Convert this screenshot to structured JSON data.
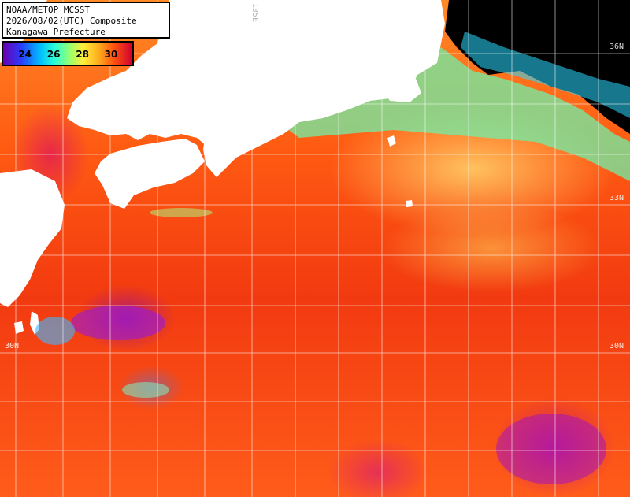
{
  "header": {
    "line1": "NOAA/METOP MCSST",
    "line2": "2026/08/02(UTC) Composite",
    "line3": "Kanagawa Prefecture"
  },
  "legend": {
    "ticks": [
      {
        "label": "24",
        "value": 24
      },
      {
        "label": "26",
        "value": 26
      },
      {
        "label": "28",
        "value": 28
      },
      {
        "label": "30",
        "value": 30
      }
    ],
    "range": [
      22.5,
      31.5
    ]
  },
  "grid": {
    "lat_labels": [
      "36N",
      "33N",
      "30N",
      "30N"
    ],
    "lon_label": "135E"
  },
  "colors": {
    "land": "#ffffff",
    "no_data": "#000000",
    "grid": "#ffffff"
  }
}
